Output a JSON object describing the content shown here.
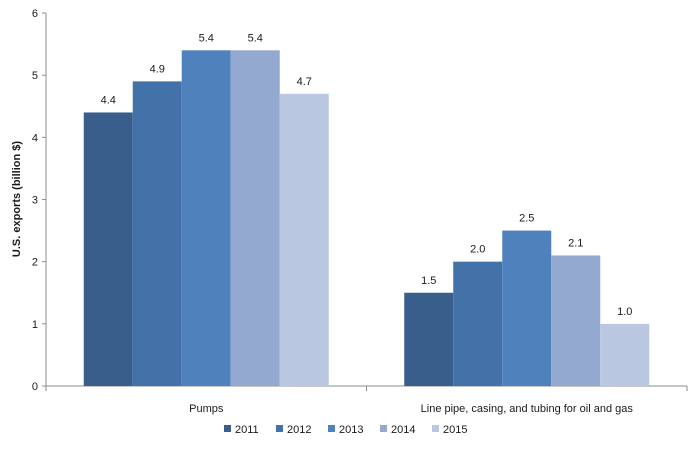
{
  "chart_data": {
    "type": "bar",
    "title": "",
    "xlabel": "",
    "ylabel": "U.S. exports (billion $)",
    "ylim": [
      0,
      6
    ],
    "y_ticks": [
      0,
      1,
      2,
      3,
      4,
      5,
      6
    ],
    "grid": false,
    "legend_position": "bottom",
    "categories": [
      "Pumps",
      "Line pipe, casing, and tubing for oil and gas"
    ],
    "series": [
      {
        "name": "2011",
        "color": "#3a5e8c",
        "values": [
          4.4,
          1.5
        ]
      },
      {
        "name": "2012",
        "color": "#4372a9",
        "values": [
          4.9,
          2.0
        ]
      },
      {
        "name": "2013",
        "color": "#4f81bd",
        "values": [
          5.4,
          2.5
        ]
      },
      {
        "name": "2014",
        "color": "#93a9cf",
        "values": [
          5.4,
          2.1
        ]
      },
      {
        "name": "2015",
        "color": "#b9c7e1",
        "values": [
          4.7,
          1.0
        ]
      }
    ],
    "data_labels": [
      [
        "4.4",
        "1.5"
      ],
      [
        "4.9",
        "2.0"
      ],
      [
        "5.4",
        "2.5"
      ],
      [
        "5.4",
        "2.1"
      ],
      [
        "4.7",
        "1.0"
      ]
    ]
  }
}
